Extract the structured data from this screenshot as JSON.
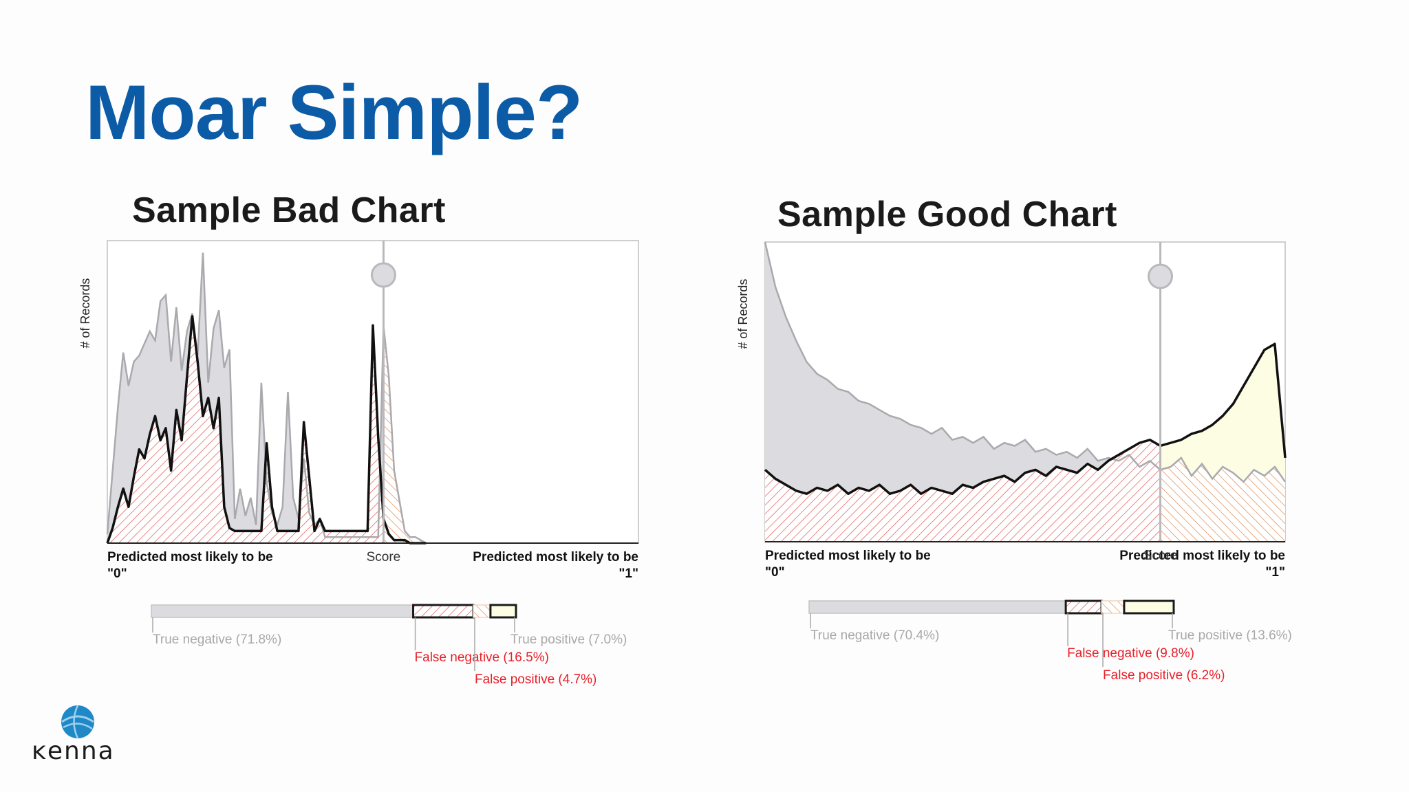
{
  "slide": {
    "title": "Moar Simple?"
  },
  "logo": {
    "text": "Kenna",
    "colors": {
      "globe": "#1f88c7",
      "globe_light": "#9fd0ee"
    }
  },
  "colors": {
    "title": "#0b5ba6",
    "total_fill": "#dcdbdf",
    "total_line": "#a9a9ae",
    "positive_line": "#111111",
    "hatch_red": "#e0524f",
    "hatch_orange": "#e0884f",
    "true_positive_fill": "#fcfde2",
    "label_grey": "#a8a8a8",
    "label_red": "#e8202a"
  },
  "chart_data": [
    {
      "type": "area",
      "title": "Sample Bad Chart",
      "ylabel": "# of Records",
      "xlabel": "Score",
      "x_left_label": [
        "Predicted most likely to be",
        "\"0\""
      ],
      "x_right_label": [
        "Predicted most likely to be",
        "\"1\""
      ],
      "xlim": [
        0,
        100
      ],
      "ylim": [
        0,
        100
      ],
      "threshold": 52,
      "series": [
        {
          "name": "total",
          "x": [
            0,
            2,
            3,
            4,
            5,
            6,
            8,
            9,
            10,
            11,
            12,
            13,
            14,
            15,
            16,
            17,
            18,
            19,
            20,
            21,
            22,
            23,
            24,
            25,
            26,
            27,
            28,
            29,
            30,
            31,
            32,
            33,
            34,
            35,
            36,
            37,
            38,
            39,
            40,
            41,
            42,
            43,
            44,
            45,
            46,
            47,
            48,
            49,
            50,
            51,
            52,
            53,
            54,
            55,
            56,
            57,
            58,
            59,
            60
          ],
          "values": [
            3,
            45,
            63,
            52,
            60,
            62,
            70,
            67,
            80,
            82,
            60,
            78,
            57,
            70,
            76,
            62,
            96,
            53,
            71,
            77,
            58,
            64,
            8,
            18,
            9,
            15,
            6,
            53,
            20,
            10,
            6,
            12,
            50,
            15,
            8,
            28,
            10,
            6,
            8,
            2,
            2,
            2,
            2,
            2,
            2,
            2,
            2,
            2,
            2,
            2,
            72,
            55,
            24,
            14,
            4,
            2,
            2,
            1,
            0
          ]
        },
        {
          "name": "positive",
          "x": [
            0,
            1,
            2,
            3,
            4,
            5,
            6,
            7,
            8,
            9,
            10,
            11,
            12,
            13,
            14,
            15,
            16,
            17,
            18,
            19,
            20,
            21,
            22,
            23,
            24,
            25,
            26,
            27,
            28,
            29,
            30,
            31,
            32,
            33,
            34,
            35,
            36,
            37,
            38,
            39,
            40,
            41,
            42,
            43,
            44,
            45,
            46,
            47,
            48,
            49,
            50,
            51,
            52,
            53,
            54,
            55,
            56,
            57,
            58,
            59,
            60
          ],
          "values": [
            0,
            5,
            12,
            18,
            12,
            22,
            31,
            28,
            36,
            42,
            34,
            38,
            24,
            44,
            34,
            55,
            75,
            60,
            42,
            48,
            38,
            48,
            12,
            5,
            4,
            4,
            4,
            4,
            4,
            4,
            33,
            12,
            4,
            4,
            4,
            4,
            4,
            40,
            22,
            4,
            8,
            4,
            4,
            4,
            4,
            4,
            4,
            4,
            4,
            4,
            72,
            35,
            8,
            3,
            1,
            1,
            1,
            0,
            0,
            0,
            0
          ]
        }
      ],
      "breakdown": [
        {
          "name": "True negative",
          "value": 71.8,
          "label": "True negative (71.8%)"
        },
        {
          "name": "False negative",
          "value": 16.5,
          "label": "False negative (16.5%)"
        },
        {
          "name": "False positive",
          "value": 4.7,
          "label": "False positive (4.7%)"
        },
        {
          "name": "True positive",
          "value": 7.0,
          "label": "True positive (7.0%)"
        }
      ]
    },
    {
      "type": "area",
      "title": "Sample Good Chart",
      "ylabel": "# of Records",
      "xlabel": "Score",
      "x_left_label": [
        "Predicted most likely to be",
        "\"0\""
      ],
      "x_right_label": [
        "Predicted most likely to be",
        "\"1\""
      ],
      "xlim": [
        0,
        100
      ],
      "ylim": [
        0,
        100
      ],
      "threshold": 76,
      "series": [
        {
          "name": "total",
          "x": [
            0,
            2,
            4,
            6,
            8,
            10,
            12,
            14,
            16,
            18,
            20,
            22,
            24,
            26,
            28,
            30,
            32,
            34,
            36,
            38,
            40,
            42,
            44,
            46,
            48,
            50,
            52,
            54,
            56,
            58,
            60,
            62,
            64,
            66,
            68,
            70,
            72,
            74,
            76,
            78,
            80,
            82,
            84,
            86,
            88,
            90,
            92,
            94,
            96,
            98,
            100
          ],
          "values": [
            100,
            85,
            75,
            67,
            60,
            56,
            54,
            51,
            50,
            47,
            46,
            44,
            42,
            41,
            39,
            38,
            36,
            38,
            34,
            35,
            33,
            35,
            31,
            33,
            32,
            34,
            30,
            31,
            29,
            30,
            28,
            31,
            27,
            28,
            27,
            29,
            25,
            27,
            24,
            25,
            28,
            22,
            26,
            21,
            25,
            23,
            20,
            24,
            22,
            25,
            20
          ]
        },
        {
          "name": "positive",
          "x": [
            0,
            2,
            4,
            6,
            8,
            10,
            12,
            14,
            16,
            18,
            20,
            22,
            24,
            26,
            28,
            30,
            32,
            34,
            36,
            38,
            40,
            42,
            44,
            46,
            48,
            50,
            52,
            54,
            56,
            58,
            60,
            62,
            64,
            66,
            68,
            70,
            72,
            74,
            76,
            78,
            80,
            82,
            84,
            86,
            88,
            90,
            92,
            94,
            96,
            98,
            100
          ],
          "values": [
            24,
            21,
            19,
            17,
            16,
            18,
            17,
            19,
            16,
            18,
            17,
            19,
            16,
            17,
            19,
            16,
            18,
            17,
            16,
            19,
            18,
            20,
            21,
            22,
            20,
            23,
            24,
            22,
            25,
            24,
            23,
            26,
            24,
            27,
            29,
            31,
            33,
            34,
            32,
            33,
            34,
            36,
            37,
            39,
            42,
            46,
            52,
            58,
            64,
            66,
            28
          ]
        }
      ],
      "breakdown": [
        {
          "name": "True negative",
          "value": 70.4,
          "label": "True negative (70.4%)"
        },
        {
          "name": "False negative",
          "value": 9.8,
          "label": "False negative (9.8%)"
        },
        {
          "name": "False positive",
          "value": 6.2,
          "label": "False positive (6.2%)"
        },
        {
          "name": "True positive",
          "value": 13.6,
          "label": "True positive (13.6%)"
        }
      ]
    }
  ]
}
